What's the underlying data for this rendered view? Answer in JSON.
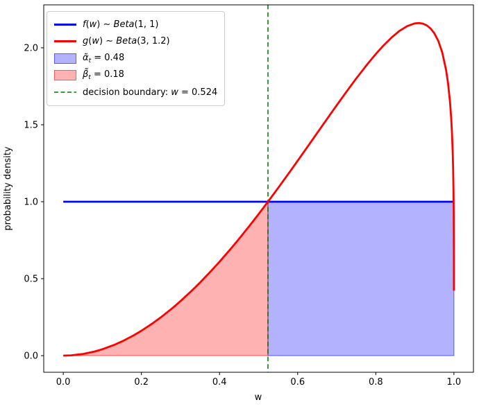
{
  "chart_data": {
    "type": "line",
    "title": "",
    "xlabel": "w",
    "ylabel": "probability density",
    "xlim": [
      -0.05,
      1.05
    ],
    "ylim": [
      -0.108,
      2.279
    ],
    "grid": false,
    "background": "#ffffff",
    "x_ticks": [
      {
        "value": 0.0,
        "label": "0.0"
      },
      {
        "value": 0.2,
        "label": "0.2"
      },
      {
        "value": 0.4,
        "label": "0.4"
      },
      {
        "value": 0.6,
        "label": "0.6"
      },
      {
        "value": 0.8,
        "label": "0.8"
      },
      {
        "value": 1.0,
        "label": "1.0"
      }
    ],
    "y_ticks": [
      {
        "value": 0.0,
        "label": "0.0"
      },
      {
        "value": 0.5,
        "label": "0.5"
      },
      {
        "value": 1.0,
        "label": "1.0"
      },
      {
        "value": 1.5,
        "label": "1.5"
      },
      {
        "value": 2.0,
        "label": "2.0"
      }
    ],
    "series": [
      {
        "name": "f(w) ~ Beta(1, 1)",
        "color": "#0000ff",
        "width": 2.8,
        "x": [
          1e-05,
          0.99999
        ],
        "y": [
          1.0,
          1.0
        ]
      },
      {
        "name": "g(w) ~ Beta(3, 1.2)",
        "color": "#ff0000",
        "width": 2.8,
        "x": [
          1e-05,
          0.02,
          0.05,
          0.08,
          0.1,
          0.13,
          0.15,
          0.18,
          0.2,
          0.23,
          0.25,
          0.28,
          0.3,
          0.33,
          0.35,
          0.38,
          0.4,
          0.43,
          0.45,
          0.48,
          0.5,
          0.524,
          0.55,
          0.58,
          0.6,
          0.63,
          0.65,
          0.68,
          0.7,
          0.73,
          0.75,
          0.78,
          0.8,
          0.82,
          0.84,
          0.86,
          0.88,
          0.9,
          0.91,
          0.92,
          0.93,
          0.94,
          0.95,
          0.96,
          0.97,
          0.98,
          0.985,
          0.99,
          0.993,
          0.995,
          0.997,
          0.998,
          0.999,
          0.9995,
          0.9999,
          0.99999
        ],
        "y": [
          0,
          0.0017,
          0.0105,
          0.0266,
          0.0414,
          0.0694,
          0.092,
          0.1315,
          0.1616,
          0.2121,
          0.2493,
          0.3101,
          0.354,
          0.4246,
          0.4747,
          0.5543,
          0.6102,
          0.698,
          0.7589,
          0.8539,
          0.9192,
          1.0,
          1.0892,
          1.1946,
          1.266,
          1.3742,
          1.4466,
          1.555,
          1.6268,
          1.7323,
          1.8007,
          1.8985,
          1.9594,
          2.0156,
          2.0659,
          2.1085,
          2.1404,
          2.1587,
          2.1609,
          2.1572,
          2.1464,
          2.1262,
          2.0938,
          2.0448,
          1.9711,
          1.8551,
          1.7693,
          1.648,
          1.5439,
          1.4493,
          1.3138,
          1.2139,
          1.0589,
          0.9227,
          0.6693,
          0.4224
        ]
      }
    ],
    "regions": [
      {
        "name": "alpha-region",
        "value": 0.48,
        "color": "#0000ff",
        "fill_opacity": 0.3,
        "edge_opacity": 0.5,
        "shape": "rect",
        "x0": 0.524,
        "x1": 0.99999,
        "y0": 0.0,
        "y1": 1.0
      },
      {
        "name": "beta-region",
        "value": 0.18,
        "color": "#ff0000",
        "fill_opacity": 0.3,
        "edge_opacity": 0.5,
        "shape": "under-curve",
        "series_index": 1,
        "x0": 1e-05,
        "x1": 0.524,
        "y0": 0.0
      }
    ],
    "boundary": {
      "x": 0.524,
      "color": "#008000",
      "opacity": 0.78,
      "dash": [
        6.5,
        4.3
      ],
      "width": 2
    },
    "legend": {
      "entries": [
        {
          "name": "legend-f-line",
          "swatch": "line",
          "color": "#0000ff",
          "segments": [
            {
              "t": "f",
              "i": 1
            },
            {
              "t": "(",
              "i": 0
            },
            {
              "t": "w",
              "i": 1
            },
            {
              "t": ")",
              "i": 0
            },
            {
              "t": " ∼ ",
              "i": 0
            },
            {
              "t": "Beta",
              "i": 1
            },
            {
              "t": "(1, 1)",
              "i": 0
            }
          ]
        },
        {
          "name": "legend-g-line",
          "swatch": "line",
          "color": "#ff0000",
          "segments": [
            {
              "t": "g",
              "i": 1
            },
            {
              "t": "(",
              "i": 0
            },
            {
              "t": "w",
              "i": 1
            },
            {
              "t": ")",
              "i": 0
            },
            {
              "t": " ∼ ",
              "i": 0
            },
            {
              "t": "Beta",
              "i": 1
            },
            {
              "t": "(3, 1.2)",
              "i": 0
            }
          ]
        },
        {
          "name": "legend-alpha-patch",
          "swatch": "patch",
          "color": "#0000ff",
          "fill_opacity": 0.3,
          "edge_opacity": 0.5,
          "segments": [
            {
              "t": "α̃",
              "i": 1
            },
            {
              "t": "t",
              "i": 1,
              "sub": 1
            },
            {
              "t": " = 0.48",
              "i": 0
            }
          ]
        },
        {
          "name": "legend-beta-patch",
          "swatch": "patch",
          "color": "#ff0000",
          "fill_opacity": 0.3,
          "edge_opacity": 0.5,
          "segments": [
            {
              "t": "β̃",
              "i": 1
            },
            {
              "t": "t",
              "i": 1,
              "sub": 1
            },
            {
              "t": " = 0.18",
              "i": 0
            }
          ]
        },
        {
          "name": "legend-boundary-line",
          "swatch": "dashed",
          "color": "#008000",
          "opacity": 0.78,
          "segments": [
            {
              "t": "decision boundary: ",
              "i": 0
            },
            {
              "t": "w",
              "i": 1
            },
            {
              "t": " = 0.524",
              "i": 0
            }
          ]
        }
      ]
    }
  }
}
